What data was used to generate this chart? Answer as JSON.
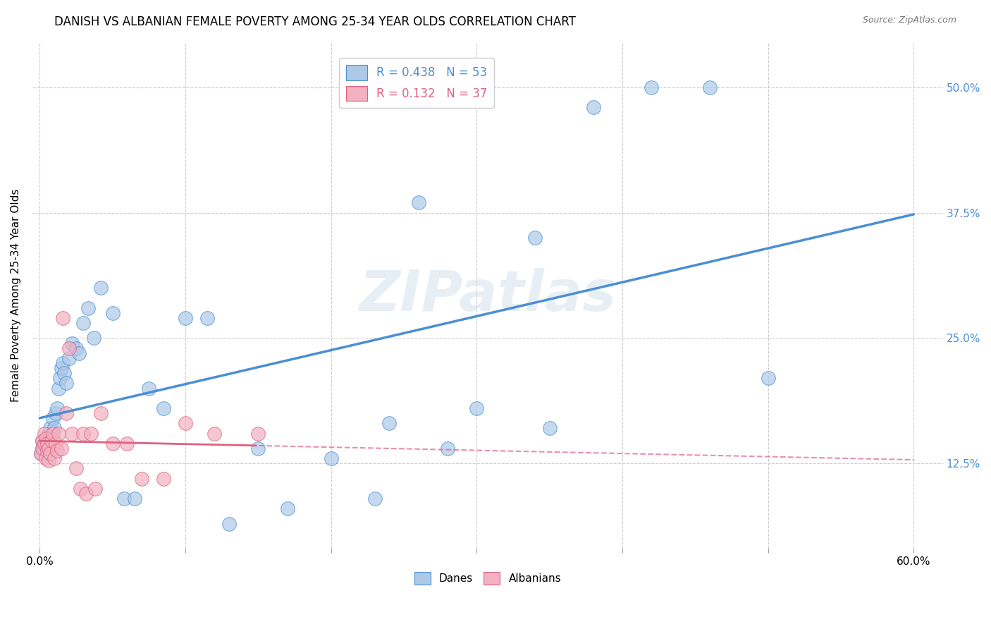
{
  "title": "DANISH VS ALBANIAN FEMALE POVERTY AMONG 25-34 YEAR OLDS CORRELATION CHART",
  "source": "Source: ZipAtlas.com",
  "ylabel": "Female Poverty Among 25-34 Year Olds",
  "yticks_labels": [
    "12.5%",
    "25.0%",
    "37.5%",
    "50.0%"
  ],
  "ytick_vals": [
    0.125,
    0.25,
    0.375,
    0.5
  ],
  "legend_r_danes": "0.438",
  "legend_n_danes": "53",
  "legend_r_albanians": "0.132",
  "legend_n_albanians": "37",
  "danes_color": "#adc9e8",
  "albanians_color": "#f2b0c0",
  "danes_line_color": "#4a8fd4",
  "albanians_line_color": "#e06080",
  "watermark": "ZIPatlas",
  "danes_x": [
    0.001,
    0.002,
    0.002,
    0.003,
    0.003,
    0.004,
    0.004,
    0.005,
    0.005,
    0.006,
    0.006,
    0.007,
    0.008,
    0.009,
    0.01,
    0.011,
    0.012,
    0.013,
    0.014,
    0.015,
    0.016,
    0.017,
    0.018,
    0.02,
    0.022,
    0.025,
    0.027,
    0.03,
    0.033,
    0.037,
    0.042,
    0.05,
    0.058,
    0.065,
    0.075,
    0.085,
    0.1,
    0.115,
    0.13,
    0.15,
    0.17,
    0.2,
    0.23,
    0.26,
    0.3,
    0.34,
    0.38,
    0.42,
    0.46,
    0.5,
    0.24,
    0.28,
    0.35
  ],
  "danes_y": [
    0.135,
    0.148,
    0.14,
    0.143,
    0.14,
    0.142,
    0.145,
    0.138,
    0.15,
    0.144,
    0.155,
    0.16,
    0.15,
    0.17,
    0.16,
    0.175,
    0.18,
    0.2,
    0.21,
    0.22,
    0.225,
    0.215,
    0.205,
    0.23,
    0.245,
    0.24,
    0.235,
    0.265,
    0.28,
    0.25,
    0.3,
    0.275,
    0.09,
    0.09,
    0.2,
    0.18,
    0.27,
    0.27,
    0.065,
    0.14,
    0.08,
    0.13,
    0.09,
    0.385,
    0.18,
    0.35,
    0.48,
    0.5,
    0.5,
    0.21,
    0.165,
    0.14,
    0.16
  ],
  "albanians_x": [
    0.001,
    0.002,
    0.002,
    0.003,
    0.003,
    0.004,
    0.004,
    0.005,
    0.005,
    0.006,
    0.006,
    0.007,
    0.008,
    0.009,
    0.01,
    0.011,
    0.012,
    0.013,
    0.015,
    0.016,
    0.018,
    0.02,
    0.022,
    0.025,
    0.028,
    0.03,
    0.032,
    0.035,
    0.038,
    0.042,
    0.05,
    0.06,
    0.07,
    0.085,
    0.1,
    0.12,
    0.15
  ],
  "albanians_y": [
    0.135,
    0.148,
    0.14,
    0.155,
    0.145,
    0.13,
    0.15,
    0.138,
    0.145,
    0.128,
    0.14,
    0.135,
    0.148,
    0.155,
    0.13,
    0.145,
    0.138,
    0.155,
    0.14,
    0.27,
    0.175,
    0.24,
    0.155,
    0.12,
    0.1,
    0.155,
    0.095,
    0.155,
    0.1,
    0.175,
    0.145,
    0.145,
    0.11,
    0.11,
    0.165,
    0.155,
    0.155
  ]
}
